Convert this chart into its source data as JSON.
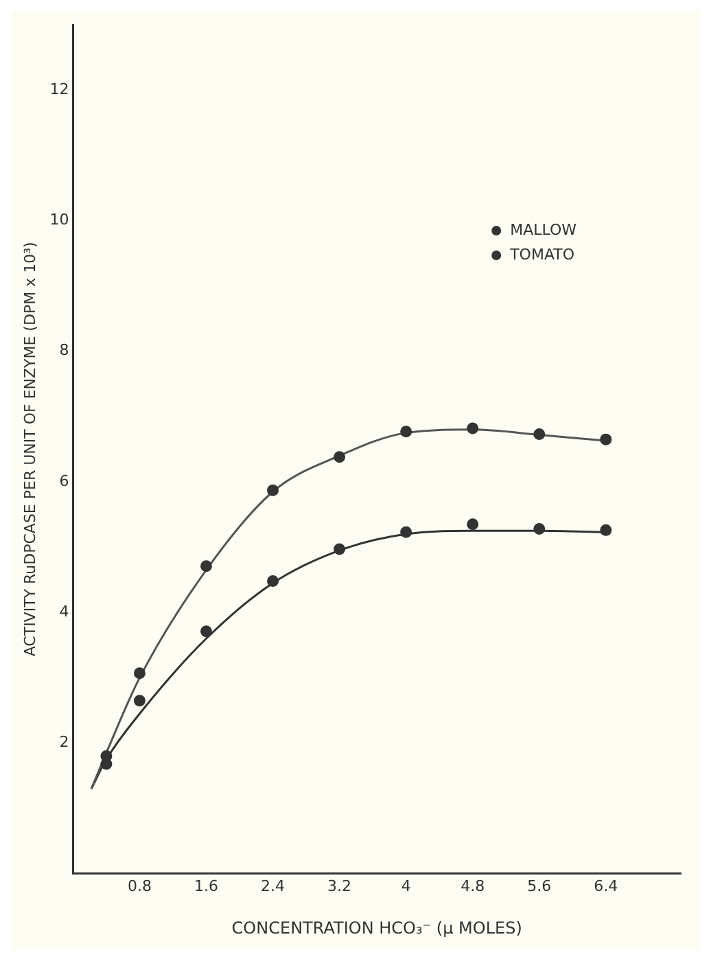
{
  "chart_data": {
    "type": "scatter",
    "xlabel": "CONCENTRATION HCO₃⁻ (µ MOLES)",
    "ylabel": "ACTIVITY RuDPCASE PER UNIT OF ENZYME (DPM x 10³)",
    "xlim": [
      0,
      7.3
    ],
    "ylim": [
      0,
      13
    ],
    "xticks": [
      0.8,
      1.6,
      2.4,
      3.2,
      4.0,
      4.8,
      5.6,
      6.4
    ],
    "yticks": [
      2,
      4,
      6,
      8,
      10,
      12
    ],
    "grid": false,
    "legend": "top right",
    "series": [
      {
        "name": "MALLOW",
        "marker": "circle",
        "color": "#333333",
        "x": [
          0.4,
          0.8,
          1.6,
          2.4,
          3.2,
          4.0,
          4.8,
          5.6,
          6.4
        ],
        "values": [
          1.8,
          3.07,
          4.71,
          5.87,
          6.38,
          6.77,
          6.82,
          6.73,
          6.65
        ]
      },
      {
        "name": "TOMATO",
        "marker": "circle",
        "color": "#333333",
        "x": [
          0.4,
          0.8,
          1.6,
          2.4,
          3.2,
          4.0,
          4.8,
          5.6,
          6.4
        ],
        "values": [
          1.68,
          2.65,
          3.71,
          4.48,
          4.97,
          5.23,
          5.35,
          5.28,
          5.26
        ]
      },
      {
        "type": "line",
        "marker": "none",
        "color": "#555555",
        "x": [
          0.22,
          0.4,
          0.8,
          1.6,
          2.4,
          3.2,
          4.0,
          4.8,
          5.6,
          6.4
        ],
        "values": [
          1.3,
          1.85,
          3.0,
          4.65,
          5.85,
          6.4,
          6.75,
          6.8,
          6.72,
          6.63
        ]
      },
      {
        "type": "line",
        "marker": "none",
        "color": "#333333",
        "x": [
          0.22,
          0.4,
          0.8,
          1.6,
          2.4,
          3.2,
          4.0,
          4.8,
          5.6,
          6.4
        ],
        "values": [
          1.3,
          1.75,
          2.45,
          3.6,
          4.45,
          4.95,
          5.2,
          5.25,
          5.25,
          5.23
        ]
      }
    ]
  }
}
